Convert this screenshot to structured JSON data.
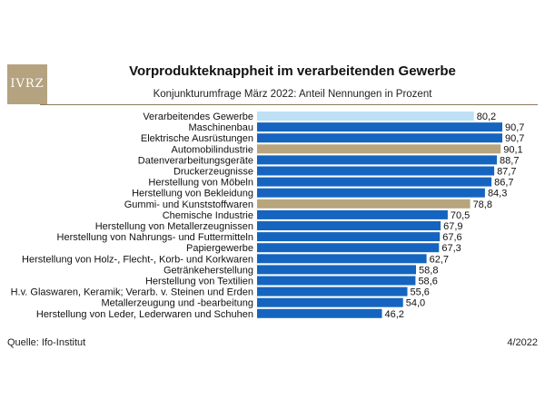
{
  "header": {
    "logo_text": "IVRZ",
    "title": "Vorprodukteknappheit im verarbeitenden Gewerbe",
    "subtitle": "Konjunkturumfrage März 2022: Anteil Nennungen in Prozent"
  },
  "footer": {
    "source": "Quelle: Ifo-Institut",
    "date": "4/2022"
  },
  "colors": {
    "highlight_light": "#bde0f4",
    "highlight_gold": "#b8a57d",
    "default_bar": "#1565c0"
  },
  "chart_data": {
    "type": "bar",
    "orientation": "horizontal",
    "title": "Vorprodukteknappheit im verarbeitenden Gewerbe",
    "subtitle": "Konjunkturumfrage März 2022: Anteil Nennungen in Prozent",
    "xlim": [
      0,
      100
    ],
    "grid": false,
    "categories": [
      "Verarbeitendes Gewerbe",
      "Maschinenbau",
      "Elektrische Ausrüstungen",
      "Automobilindustrie",
      "Datenverarbeitungsgeräte",
      "Druckerzeugnisse",
      "Herstellung von Möbeln",
      "Herstellung von Bekleidung",
      "Gummi- und Kunststoffwaren",
      "Chemische Industrie",
      "Herstellung von Metallerzeugnissen",
      "Herstellung von Nahrungs- und Futtermitteln",
      "Papiergewerbe",
      "Herstellung von Holz-, Flecht-, Korb- und Korkwaren",
      "Getränkeherstellung",
      "Herstellung von Textilien",
      "H.v. Glaswaren, Keramik; Verarb. v. Steinen und Erden",
      "Metallerzeugung und -bearbeitung",
      "Herstellung von Leder, Lederwaren und Schuhen"
    ],
    "values": [
      80.2,
      90.7,
      90.7,
      90.1,
      88.7,
      87.7,
      86.7,
      84.3,
      78.8,
      70.5,
      67.9,
      67.6,
      67.3,
      62.7,
      58.8,
      58.6,
      55.6,
      54.0,
      46.2
    ],
    "value_labels": [
      "80,2",
      "90,7",
      "90,7",
      "90,1",
      "88,7",
      "87,7",
      "86,7",
      "84,3",
      "78,8",
      "70,5",
      "67,9",
      "67,6",
      "67,3",
      "62,7",
      "58,8",
      "58,6",
      "55,6",
      "54,0",
      "46,2"
    ],
    "highlights": {
      "0": "highlight_light",
      "3": "highlight_gold",
      "8": "highlight_gold"
    }
  }
}
